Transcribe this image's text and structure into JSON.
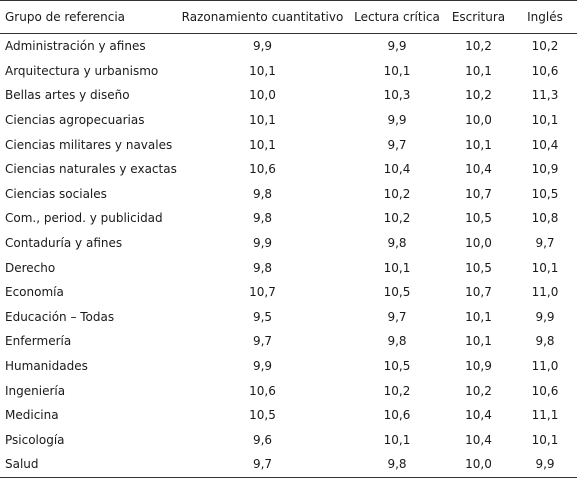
{
  "table": {
    "headers": [
      "Grupo de referencia",
      "Razonamiento cuantitativo",
      "Lectura crítica",
      "Escritura",
      "Inglés"
    ],
    "rows": [
      [
        "Administración y afines",
        "9,9",
        "9,9",
        "10,2",
        "10,2"
      ],
      [
        "Arquitectura y urbanismo",
        "10,1",
        "10,1",
        "10,1",
        "10,6"
      ],
      [
        "Bellas artes y diseño",
        "10,0",
        "10,3",
        "10,2",
        "11,3"
      ],
      [
        "Ciencias agropecuarias",
        "10,1",
        "9,9",
        "10,0",
        "10,1"
      ],
      [
        "Ciencias militares y navales",
        "10,1",
        "9,7",
        "10,1",
        "10,4"
      ],
      [
        "Ciencias naturales y exactas",
        "10,6",
        "10,4",
        "10,4",
        "10,9"
      ],
      [
        "Ciencias sociales",
        "9,8",
        "10,2",
        "10,7",
        "10,5"
      ],
      [
        "Com., period. y publicidad",
        "9,8",
        "10,2",
        "10,5",
        "10,8"
      ],
      [
        "Contaduría y afines",
        "9,9",
        "9,8",
        "10,0",
        "9,7"
      ],
      [
        "Derecho",
        "9,8",
        "10,1",
        "10,5",
        "10,1"
      ],
      [
        "Economía",
        "10,7",
        "10,5",
        "10,7",
        "11,0"
      ],
      [
        "Educación – Todas",
        "9,5",
        "9,7",
        "10,1",
        "9,9"
      ],
      [
        "Enfermería",
        "9,7",
        "9,8",
        "10,1",
        "9,8"
      ],
      [
        "Humanidades",
        "9,9",
        "10,5",
        "10,9",
        "11,0"
      ],
      [
        "Ingeniería",
        "10,6",
        "10,2",
        "10,2",
        "10,6"
      ],
      [
        "Medicina",
        "10,5",
        "10,6",
        "10,4",
        "11,1"
      ],
      [
        "Psicología",
        "9,6",
        "10,1",
        "10,4",
        "10,1"
      ],
      [
        "Salud",
        "9,7",
        "9,8",
        "10,0",
        "9,9"
      ]
    ]
  }
}
